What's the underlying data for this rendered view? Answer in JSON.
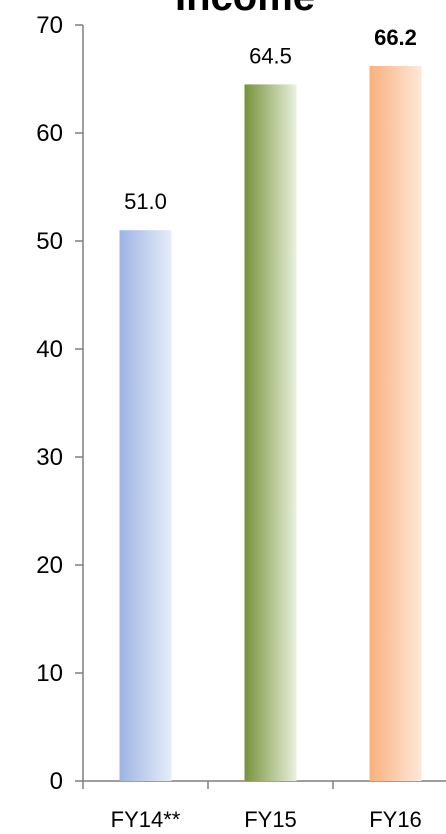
{
  "chart_data": {
    "type": "bar",
    "title": "Income",
    "categories": [
      "FY14**",
      "FY15",
      "FY16"
    ],
    "values": [
      51.0,
      64.5,
      66.2
    ],
    "value_labels": [
      "51.0",
      "64.5",
      "66.2"
    ],
    "value_label_bold": [
      false,
      false,
      true
    ],
    "ylim": [
      0,
      70
    ],
    "yticks": [
      0,
      10,
      20,
      30,
      40,
      50,
      60,
      70
    ],
    "xlabel": "",
    "ylabel": "",
    "grid": false,
    "legend": "none",
    "bar_colors": [
      {
        "dark": "#9db4e3",
        "light": "#e6edf9"
      },
      {
        "dark": "#76923c",
        "light": "#eaf1dd"
      },
      {
        "dark": "#f9b07e",
        "light": "#fde9d9"
      }
    ],
    "axis_color": "#7f7f7f"
  }
}
